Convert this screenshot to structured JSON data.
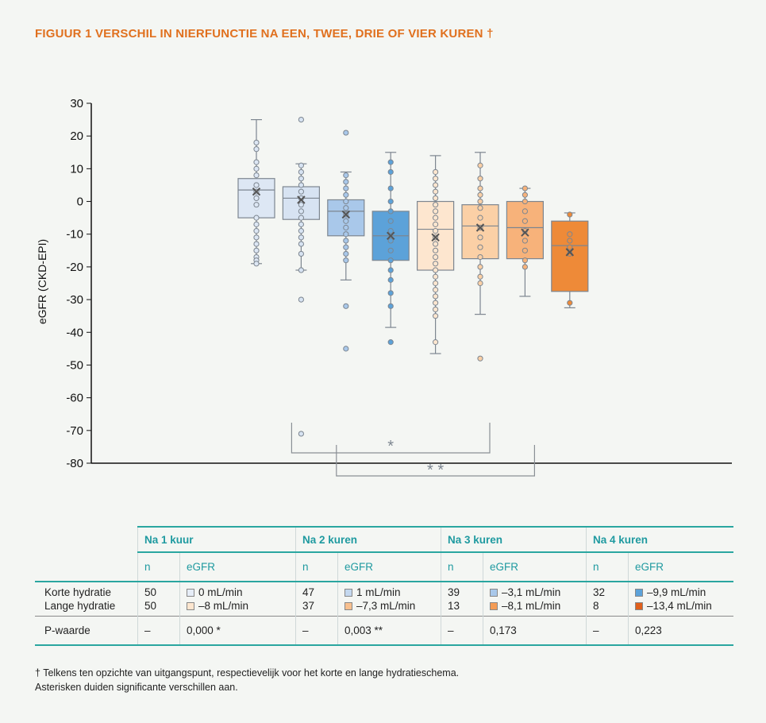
{
  "figure": {
    "title": "FIGUUR 1  VERSCHIL IN NIERFUNCTIE NA EEN, TWEE, DRIE OF VIER KUREN †"
  },
  "chart_data": {
    "type": "box",
    "ylabel": "eGFR (CKD-EPI)",
    "xlabel": "",
    "ylim": [
      -80,
      30
    ],
    "yticks": [
      "30",
      "20",
      "10",
      "0",
      "-10",
      "-20",
      "-30",
      "-40",
      "-50",
      "-60",
      "-70",
      "-80"
    ],
    "grid": false,
    "boxes": [
      {
        "group": "Na 1 kuur",
        "schema": "Korte hydratie",
        "color": "#dde7f4",
        "whisker_low": -19,
        "q1": -5,
        "median": 3.5,
        "q3": 7,
        "whisker_high": 25,
        "mean": 3,
        "points": [
          18,
          16,
          12,
          10,
          8,
          5,
          3,
          1,
          -1,
          -5,
          -7,
          -9,
          -11,
          -13,
          -15,
          -17,
          -18,
          -19
        ]
      },
      {
        "group": "Na 1 kuur",
        "schema": "Lange hydratie",
        "color": "#d7e3f2",
        "whisker_low": -21,
        "q1": -5.5,
        "median": 1,
        "q3": 4.5,
        "whisker_high": 11.5,
        "mean": 0.5,
        "points": [
          25,
          11,
          9,
          7,
          5,
          3,
          1,
          -1,
          -3,
          -5,
          -7,
          -9,
          -11,
          -13,
          -16,
          -21,
          -30,
          -71
        ]
      },
      {
        "group": "Na 2 kuren",
        "schema": "Korte hydratie",
        "color": "#a9c8ea",
        "whisker_low": -24,
        "q1": -10.5,
        "median": -3,
        "q3": 0.5,
        "whisker_high": 9,
        "mean": -4,
        "points": [
          21,
          8,
          6,
          4,
          2,
          0,
          -2,
          -4,
          -6,
          -8,
          -10,
          -12,
          -14,
          -16,
          -18,
          -32,
          -45
        ]
      },
      {
        "group": "Na 2 kuren",
        "schema": "Lange hydratie",
        "color": "#5ca2d9",
        "whisker_low": -38.5,
        "q1": -18,
        "median": -10.5,
        "q3": -3,
        "whisker_high": 15,
        "mean": -10.5,
        "points": [
          12,
          9,
          4,
          0,
          -3,
          -6,
          -9,
          -12,
          -15,
          -18,
          -21,
          -24,
          -28,
          -32,
          -43
        ]
      },
      {
        "group": "Na 3 kuren",
        "schema": "Korte hydratie",
        "color": "#fde6cf",
        "whisker_low": -46.5,
        "q1": -21,
        "median": -8.5,
        "q3": 0,
        "whisker_high": 14,
        "mean": -11,
        "points": [
          9,
          7,
          5,
          3,
          1,
          -1,
          -3,
          -5,
          -7,
          -9,
          -11,
          -13,
          -15,
          -17,
          -19,
          -21,
          -23,
          -25,
          -27,
          -29,
          -31,
          -33,
          -35,
          -43
        ]
      },
      {
        "group": "Na 3 kuren",
        "schema": "Lange hydratie",
        "color": "#fbd0a6",
        "whisker_low": -34.5,
        "q1": -17.5,
        "median": -7.5,
        "q3": -1,
        "whisker_high": 15,
        "mean": -8,
        "points": [
          11,
          7,
          4,
          2,
          0,
          -2,
          -5,
          -8,
          -11,
          -14,
          -17,
          -20,
          -23,
          -25,
          -48
        ]
      },
      {
        "group": "Na 4 kuren",
        "schema": "Korte hydratie",
        "color": "#f7b27a",
        "whisker_low": -29,
        "q1": -17.5,
        "median": -8,
        "q3": 0,
        "whisker_high": 4,
        "mean": -9.5,
        "points": [
          4,
          2,
          0,
          -3,
          -6,
          -9,
          -12,
          -15,
          -18,
          -20
        ]
      },
      {
        "group": "Na 4 kuren",
        "schema": "Lange hydratie",
        "color": "#ee8a38",
        "whisker_low": -32.5,
        "q1": -27.5,
        "median": -13.5,
        "q3": -6,
        "whisker_high": -3.5,
        "mean": -15.5,
        "points": [
          -4,
          -10,
          -12,
          -14,
          -16,
          -31
        ]
      }
    ],
    "brackets": [
      {
        "from_box": 1,
        "to_box": 5,
        "label": "*"
      },
      {
        "from_box": 2,
        "to_box": 6,
        "label": "* *"
      }
    ]
  },
  "table": {
    "groups": [
      "Na 1 kuur",
      "Na 2 kuren",
      "Na 3 kuren",
      "Na 4 kuren"
    ],
    "col_n": "n",
    "col_egfr": "eGFR",
    "row_labels": [
      "Korte hydratie",
      "Lange hydratie"
    ],
    "p_label": "P-waarde",
    "cells": [
      {
        "n": [
          "50",
          "50"
        ],
        "egfr": [
          "0 mL/min",
          "–8 mL/min"
        ],
        "dash": "–",
        "p": "0,000 *",
        "swatch": [
          "#e6edf7",
          "#fde6cf"
        ]
      },
      {
        "n": [
          "47",
          "37"
        ],
        "egfr": [
          "1 mL/min",
          "–7,3 mL/min"
        ],
        "dash": "–",
        "p": "0,003 **",
        "swatch": [
          "#c4d8ef",
          "#f8c08f"
        ]
      },
      {
        "n": [
          "39",
          "13"
        ],
        "egfr": [
          "–3,1 mL/min",
          "–8,1 mL/min"
        ],
        "dash": "–",
        "p": "0,173",
        "swatch": [
          "#a9c8ea",
          "#f49c55"
        ]
      },
      {
        "n": [
          "32",
          "8"
        ],
        "egfr": [
          "–9,9 mL/min",
          "–13,4 mL/min"
        ],
        "dash": "–",
        "p": "0,223",
        "swatch": [
          "#5ca2d9",
          "#e0601c"
        ]
      }
    ]
  },
  "footnote": {
    "line1": "† Telkens ten opzichte van uitgangspunt, respectievelijk voor het korte en lange hydratieschema.",
    "line2": "Asterisken duiden significante verschillen aan."
  }
}
